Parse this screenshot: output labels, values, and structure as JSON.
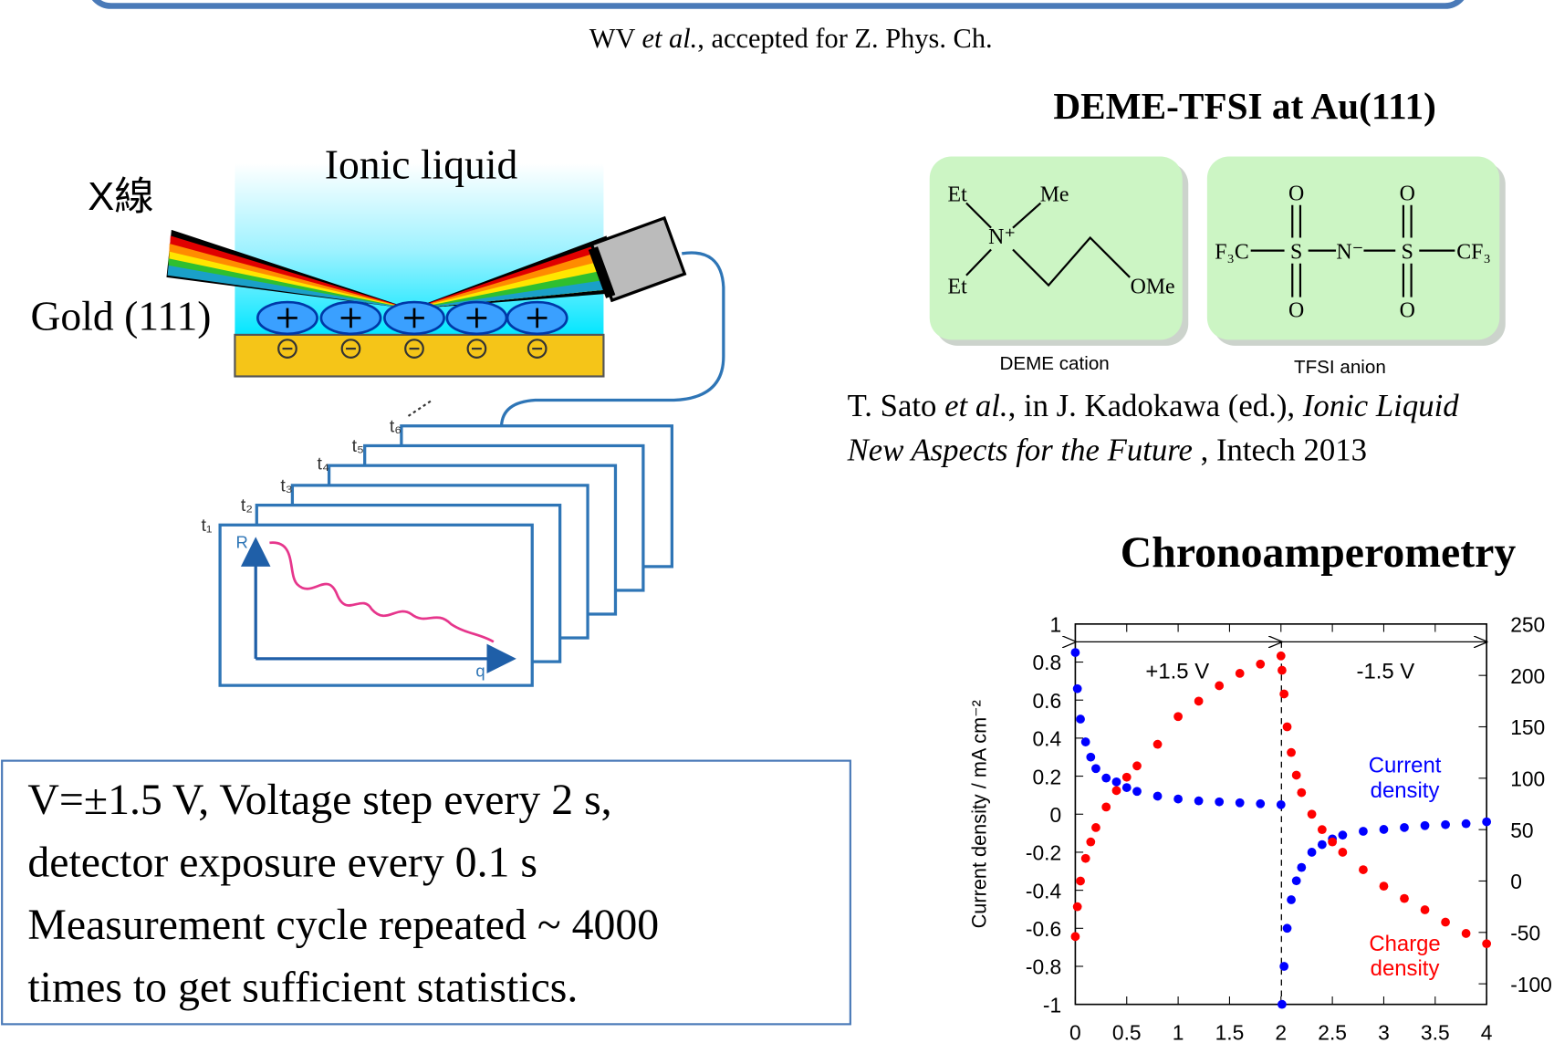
{
  "citation": [
    "WV ",
    "et al.",
    ", accepted for Z. Phys. Ch."
  ],
  "diagram": {
    "liquid_label": "Ionic liquid",
    "xray_label": "X線",
    "gold_label": "Gold (111)",
    "frames": [
      "t₁",
      "t₂",
      "t₃",
      "t₄",
      "t₅",
      "t₆"
    ],
    "axis_r": "R",
    "axis_q": "q"
  },
  "conditions": [
    "V=±1.5 V, Voltage step every  2 s,",
    "detector exposure every  0.1 s",
    "Measurement  cycle repeated ~ 4000",
    "times to get sufficient statistics."
  ],
  "molecule": {
    "title": "DEME-TFSI at Au(111)",
    "cation": {
      "atoms": [
        "Et",
        "Me",
        "N⁺",
        "Et",
        "OMe"
      ],
      "caption": "DEME cation"
    },
    "anion": {
      "atoms": [
        "O",
        "O",
        "F₃C",
        "S",
        "N⁻",
        "S",
        "CF₃",
        "O",
        "O"
      ],
      "caption": "TFSI anion"
    }
  },
  "reference": {
    "line1": [
      "T. Sato ",
      "et al.",
      ", in J. Kadokawa  (ed.), ",
      "Ionic Liquid"
    ],
    "line2": [
      "New Aspects for the Future",
      " , Intech  2013"
    ]
  },
  "chart_title": "Chronoamperometry",
  "chart_data": {
    "type": "scatter",
    "y_label": "Current density / mA cm⁻²",
    "x": [
      0,
      0.02,
      0.05,
      0.1,
      0.15,
      0.2,
      0.3,
      0.4,
      0.5,
      0.6,
      0.8,
      1.0,
      1.2,
      1.4,
      1.6,
      1.8,
      2.0,
      2.01,
      2.03,
      2.06,
      2.1,
      2.15,
      2.2,
      2.3,
      2.4,
      2.5,
      2.6,
      2.8,
      3.0,
      3.2,
      3.4,
      3.6,
      3.8,
      4.0
    ],
    "series": [
      {
        "name": "Current density",
        "color": "#0000ff",
        "axis": "y",
        "values": [
          0.85,
          0.66,
          0.5,
          0.38,
          0.3,
          0.24,
          0.19,
          0.17,
          0.14,
          0.12,
          0.095,
          0.08,
          0.07,
          0.065,
          0.06,
          0.055,
          0.05,
          -1.0,
          -0.8,
          -0.6,
          -0.45,
          -0.35,
          -0.28,
          -0.2,
          -0.16,
          -0.13,
          -0.11,
          -0.09,
          -0.08,
          -0.07,
          -0.06,
          -0.055,
          -0.05,
          -0.04
        ]
      },
      {
        "name": "Charge density",
        "color": "#ff0000",
        "axis": "y2",
        "values": [
          -54,
          -25,
          0,
          22,
          38,
          52,
          72,
          88,
          101,
          112,
          133,
          160,
          175,
          190,
          202,
          211,
          219,
          205,
          182,
          150,
          125,
          103,
          86,
          65,
          50,
          38,
          28,
          11,
          -5,
          -17,
          -28,
          -40,
          -51,
          -61
        ]
      }
    ],
    "annotations": [
      "+1.5 V",
      "-1.5 V"
    ],
    "xlim": [
      0,
      4
    ],
    "xticks": [
      0,
      0.5,
      1,
      1.5,
      2,
      2.5,
      3,
      3.5,
      4
    ],
    "ylim": [
      -1,
      1
    ],
    "yticks": [
      -1,
      -0.8,
      -0.6,
      -0.4,
      -0.2,
      0,
      0.2,
      0.4,
      0.6,
      0.8,
      1
    ],
    "y2lim": [
      -120,
      250
    ],
    "y2ticks": [
      -100,
      -50,
      0,
      50,
      100,
      150,
      200,
      250
    ]
  }
}
